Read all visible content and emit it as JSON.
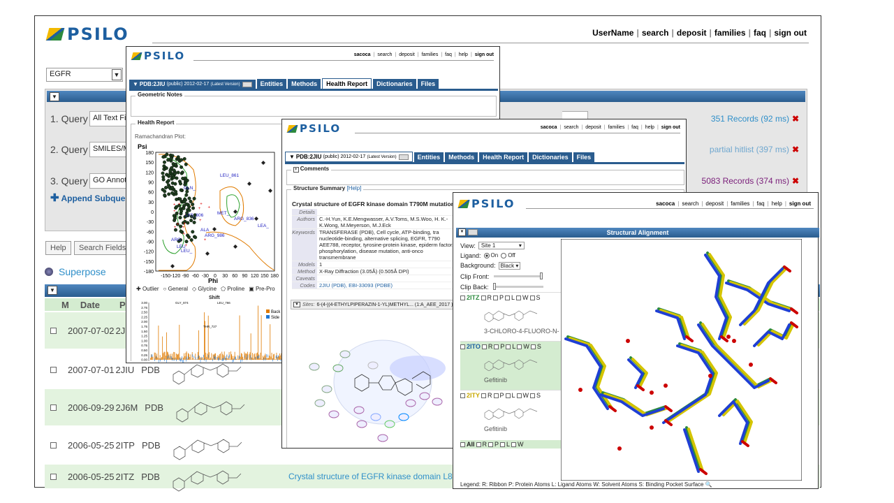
{
  "main": {
    "logo": "PSILO",
    "nav": [
      "UserName",
      "search",
      "deposit",
      "families",
      "faq",
      "sign out"
    ],
    "family_select": "EGFR",
    "queries": [
      {
        "label": "1. Query",
        "field": "All Text Fi",
        "result": "351 Records (92 ms)",
        "color": "#2f8fc9"
      },
      {
        "label": "2. Query",
        "field": "SMILES/M",
        "result": "partial hitlist (397 ms)",
        "color": "#6fa7cf"
      },
      {
        "label": "3. Query",
        "field": "GO Annot",
        "result": "5083 Records (374 ms)",
        "color": "#7a1e7a"
      }
    ],
    "append_subquery": "Append Subquery",
    "help_btn": "Help",
    "search_fields_btn": "Search Fields",
    "superpose": "Superpose",
    "table_headers": [
      "M",
      "Date",
      "P"
    ],
    "rows": [
      {
        "date": "2007-07-02",
        "id": "2J",
        "src": ""
      },
      {
        "date": "2007-07-01",
        "id": "2JIU",
        "src": "PDB"
      },
      {
        "date": "2006-09-29",
        "id": "2J6M",
        "src": "PDB"
      },
      {
        "date": "2006-05-25",
        "id": "2ITP",
        "src": "PDB"
      },
      {
        "date": "2006-05-25",
        "id": "2ITZ",
        "src": "PDB",
        "title": "Crystal structure of EGFR kinase domain L85"
      }
    ]
  },
  "win1": {
    "logo": "PSILO",
    "nav": [
      "sacoca",
      "search",
      "deposit",
      "families",
      "faq",
      "help",
      "sign out"
    ],
    "entry": "PDB:2JIU",
    "entry_meta": "(public) 2012-02-17",
    "entry_version": "(Latest Version)",
    "tabs": [
      "Entities",
      "Methods",
      "Health Report",
      "Dictionaries",
      "Files"
    ],
    "geometric_notes": "Geometric Notes",
    "health_report": "Health Report",
    "ramachandran": "Ramachandran Plot:",
    "psi": "Psi",
    "phi": "Phi",
    "y_ticks": [
      "180",
      "150",
      "120",
      "90",
      "60",
      "30",
      "0",
      "-30",
      "-60",
      "-90",
      "-120",
      "-150",
      "-180"
    ],
    "x_ticks": [
      "-150",
      "-120",
      "-90",
      "-60",
      "-30",
      "0",
      "30",
      "60",
      "90",
      "120",
      "150",
      "180"
    ],
    "residue_labels": [
      "LEU_861",
      "MET_",
      "ARG_836",
      "LEA_",
      "ARG_986",
      "LYS_806",
      "GLN_",
      "LEU",
      "ARG",
      "LEU_",
      "ALA"
    ],
    "legend": [
      "Outlier",
      "General",
      "Glycine",
      "Proline",
      "Pre-Pro"
    ],
    "shift_title": "Shift",
    "shift_y": [
      "3.00",
      "2.75",
      "2.50",
      "2.25",
      "2.00",
      "1.75",
      "1.50",
      "1.25",
      "1.00",
      "0.75",
      "0.50",
      "0.25",
      "0.00"
    ],
    "shift_labels": [
      "GLY_874",
      "LEU_766",
      "THR_727"
    ],
    "shift_legend": [
      "Back",
      "Side"
    ]
  },
  "win2": {
    "logo": "PSILO",
    "nav": [
      "sacoca",
      "search",
      "deposit",
      "families",
      "faq",
      "help",
      "sign out"
    ],
    "entry": "PDB:2JIU",
    "entry_meta": "(public) 2012-02-17",
    "entry_version": "(Latest Version)",
    "tabs": [
      "Entities",
      "Methods",
      "Health Report",
      "Dictionaries",
      "Files"
    ],
    "comments": "Comments",
    "summary": "Structure Summary",
    "summary_help": "[Help]",
    "title": "Crystal structure of EGFR kinase domain T790M mutation",
    "fields": [
      {
        "k": "Details",
        "v": ""
      },
      {
        "k": "Authors",
        "v": "C.-H.Yun, K.E.Mengwasser, A.V.Toms, M.S.Woo, H. K.-K.Wong, M.Meyerson, M.J.Eck"
      },
      {
        "k": "Keywords",
        "v": "TRANSFERASE (PDB), Cell cycle, ATP-binding, tra nucleotide-binding, alternative splicing, EGFR, T790 AEE788, receptor, tyrosine-protein kinase, epiderm factor, phosphorylation, disease mutation, anti-onco transmembrane"
      },
      {
        "k": "Models",
        "v": "1"
      },
      {
        "k": "Method",
        "v": "X-Ray Diffraction (3.05Å) (0.505Å DPI)"
      },
      {
        "k": "Caveats",
        "v": ""
      },
      {
        "k": "Codes",
        "v": "2JIU (PDB), EBI-33093 (PDBE)"
      }
    ],
    "sites_label": "Sites:",
    "sites_value": "6-(4-[(4-ETHYLPIPERAZIN-1-YL)METHYL... (1:A_AEE_2017 )"
  },
  "win3": {
    "logo": "PSILO",
    "nav": [
      "sacoca",
      "search",
      "deposit",
      "families",
      "faq",
      "help",
      "sign out"
    ],
    "header": "Structural Alignment",
    "view_label": "View:",
    "view_value": "Site 1",
    "ligand_label": "Ligand:",
    "ligand_on": "On",
    "ligand_off": "Off",
    "background_label": "Background:",
    "background_value": "Black",
    "clip_front": "Clip Front:",
    "clip_back": "Clip Back:",
    "flags": [
      "R",
      "P",
      "L",
      "W",
      "S"
    ],
    "entries": [
      {
        "id": "2ITZ",
        "name": "3-CHLORO-4-FLUORO-N-",
        "color": "#2c8a3e"
      },
      {
        "id": "2ITO",
        "name": "Gefitinib",
        "color": "#1d5fa0"
      },
      {
        "id": "2ITY",
        "name": "Gefitinib",
        "color": "#c8a800"
      }
    ],
    "all_label": "All",
    "legend_text": "Legend: R: Ribbon P: Protein Atoms L: Ligand Atoms W: Solvent Atoms S: Binding Pocket Surface"
  }
}
